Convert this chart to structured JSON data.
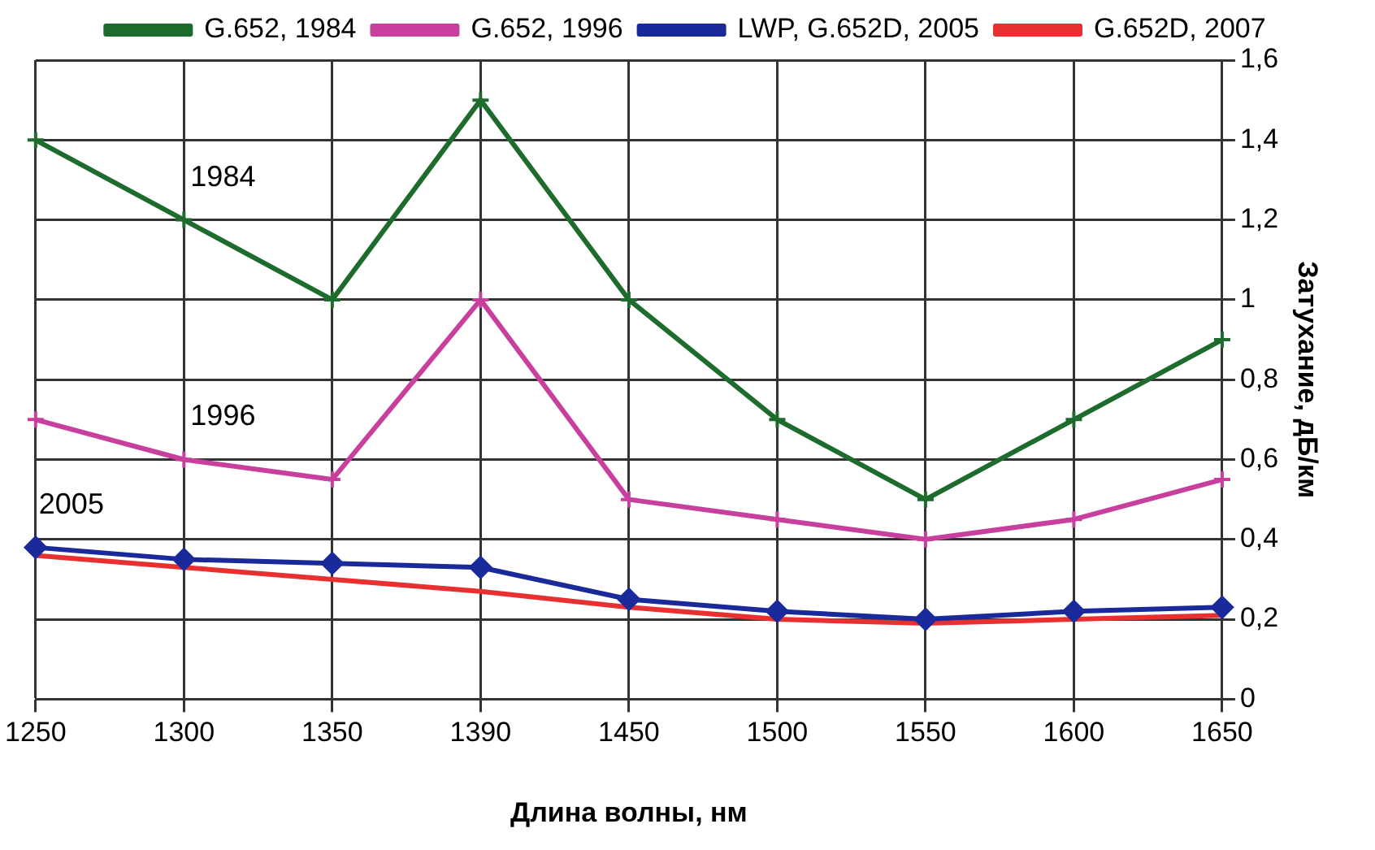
{
  "chart_data": {
    "type": "line",
    "xlabel": "Длина волны, нм",
    "ylabel": "Затухание, дБ/км",
    "categories": [
      "1250",
      "1300",
      "1350",
      "1390",
      "1450",
      "1500",
      "1550",
      "1600",
      "1650"
    ],
    "series": [
      {
        "name": "G.652, 1984",
        "color": "#1e6b2e",
        "marker": "cross",
        "values": [
          1.4,
          1.2,
          1.0,
          1.5,
          1.0,
          0.7,
          0.5,
          0.7,
          0.9
        ]
      },
      {
        "name": "G.652, 1996",
        "color": "#c8409e",
        "marker": "cross",
        "values": [
          0.7,
          0.6,
          0.55,
          1.0,
          0.5,
          0.45,
          0.4,
          0.45,
          0.55
        ]
      },
      {
        "name": "LWP, G.652D, 2005",
        "color": "#1a2a9a",
        "marker": "diamond",
        "values": [
          0.38,
          0.35,
          0.34,
          0.33,
          0.25,
          0.22,
          0.2,
          0.22,
          0.23
        ]
      },
      {
        "name": "G.652D, 2007",
        "color": "#e83030",
        "marker": "none",
        "values": [
          0.36,
          0.33,
          0.3,
          0.27,
          0.23,
          0.2,
          0.19,
          0.2,
          0.21
        ]
      }
    ],
    "ylim": [
      0,
      1.6
    ],
    "yticks": [
      0,
      {
        "value": 0.2,
        "label": "0,2"
      },
      {
        "value": 0.4,
        "label": "0,4"
      },
      {
        "value": 0.6,
        "label": "0,6"
      },
      {
        "value": 0.8,
        "label": "0,8"
      },
      1,
      {
        "value": 1.2,
        "label": "1,2"
      },
      {
        "value": 1.4,
        "label": "1,4"
      },
      {
        "value": 1.6,
        "label": "1,6"
      }
    ],
    "annotations": [
      "1984",
      "1996",
      "2005"
    ],
    "grid": true,
    "legend": "top",
    "line_style": "solid"
  }
}
